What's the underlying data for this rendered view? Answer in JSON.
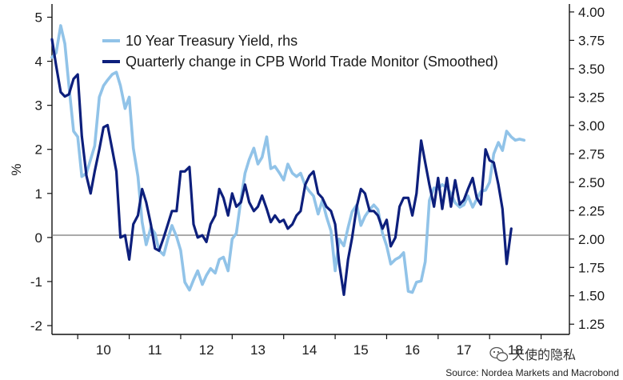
{
  "chart_data": {
    "type": "line",
    "title": "",
    "ylabel": "%",
    "y2label": "",
    "xlabel": "",
    "ylim": [
      -2.2,
      5.3
    ],
    "y2lim": [
      1.16,
      4.07
    ],
    "xlim": [
      2009.5,
      2019.55
    ],
    "yticks": [
      "-2",
      "-1",
      "0",
      "1",
      "2",
      "3",
      "4",
      "5"
    ],
    "y2ticks": [
      "1.25",
      "1.50",
      "1.75",
      "2.00",
      "2.25",
      "2.50",
      "2.75",
      "3.00",
      "3.25",
      "3.50",
      "3.75",
      "4.00"
    ],
    "xticks": [
      "10",
      "11",
      "12",
      "13",
      "14",
      "15",
      "16",
      "17",
      "18"
    ],
    "zero_line": true,
    "grid": false,
    "legend_position": "top-left",
    "source": "Source: Nordea Markets and Macrobond",
    "watermark": "天使的隐私",
    "series": [
      {
        "name": "10 Year Treasury Yield, rhs",
        "axis": "right",
        "color": "#91c3e8",
        "x": [
          2009.5,
          2009.58,
          2009.67,
          2009.75,
          2009.83,
          2009.92,
          2010.0,
          2010.08,
          2010.17,
          2010.25,
          2010.33,
          2010.42,
          2010.5,
          2010.58,
          2010.67,
          2010.75,
          2010.83,
          2010.92,
          2011.0,
          2011.08,
          2011.17,
          2011.25,
          2011.33,
          2011.42,
          2011.5,
          2011.58,
          2011.67,
          2011.75,
          2011.83,
          2011.92,
          2012.0,
          2012.08,
          2012.17,
          2012.25,
          2012.33,
          2012.42,
          2012.5,
          2012.58,
          2012.67,
          2012.75,
          2012.83,
          2012.92,
          2013.0,
          2013.08,
          2013.17,
          2013.25,
          2013.33,
          2013.42,
          2013.5,
          2013.58,
          2013.67,
          2013.75,
          2013.83,
          2013.92,
          2014.0,
          2014.08,
          2014.17,
          2014.25,
          2014.33,
          2014.42,
          2014.5,
          2014.58,
          2014.67,
          2014.75,
          2014.83,
          2014.92,
          2015.0,
          2015.08,
          2015.17,
          2015.25,
          2015.33,
          2015.42,
          2015.5,
          2015.58,
          2015.67,
          2015.75,
          2015.83,
          2015.92,
          2016.0,
          2016.08,
          2016.17,
          2016.25,
          2016.33,
          2016.42,
          2016.5,
          2016.58,
          2016.67,
          2016.75,
          2016.83,
          2016.92,
          2017.0,
          2017.08,
          2017.17,
          2017.25,
          2017.33,
          2017.42,
          2017.5,
          2017.58,
          2017.67,
          2017.75,
          2017.83,
          2017.92,
          2018.0,
          2018.08,
          2018.17,
          2018.25,
          2018.33,
          2018.42,
          2018.5,
          2018.58,
          2018.67
        ],
        "values": [
          3.6,
          3.64,
          3.88,
          3.72,
          3.35,
          2.95,
          2.9,
          2.55,
          2.58,
          2.7,
          2.82,
          3.25,
          3.35,
          3.4,
          3.45,
          3.47,
          3.35,
          3.15,
          3.25,
          2.8,
          2.55,
          2.15,
          1.95,
          2.1,
          2.05,
          1.9,
          1.86,
          2.0,
          2.12,
          2.02,
          1.9,
          1.62,
          1.55,
          1.64,
          1.72,
          1.6,
          1.68,
          1.74,
          1.7,
          1.82,
          1.84,
          1.72,
          2.0,
          2.05,
          2.35,
          2.58,
          2.7,
          2.8,
          2.66,
          2.72,
          2.9,
          2.62,
          2.64,
          2.58,
          2.52,
          2.66,
          2.58,
          2.55,
          2.58,
          2.47,
          2.42,
          2.38,
          2.22,
          2.34,
          2.2,
          2.07,
          1.72,
          2.0,
          1.94,
          2.1,
          2.24,
          2.3,
          2.12,
          2.2,
          2.26,
          2.3,
          2.26,
          2.05,
          1.94,
          1.78,
          1.82,
          1.84,
          1.88,
          1.54,
          1.53,
          1.62,
          1.63,
          1.8,
          2.34,
          2.45,
          2.44,
          2.48,
          2.45,
          2.4,
          2.32,
          2.28,
          2.3,
          2.38,
          2.28,
          2.35,
          2.42,
          2.43,
          2.5,
          2.75,
          2.85,
          2.78,
          2.95,
          2.9,
          2.87,
          2.88,
          2.87
        ]
      },
      {
        "name": "Quarterly change in CPB World Trade Monitor (Smoothed)",
        "axis": "left",
        "color": "#0d1f7c",
        "x": [
          2009.5,
          2009.58,
          2009.67,
          2009.75,
          2009.83,
          2009.92,
          2010.0,
          2010.08,
          2010.17,
          2010.25,
          2010.33,
          2010.42,
          2010.5,
          2010.58,
          2010.67,
          2010.75,
          2010.83,
          2010.92,
          2011.0,
          2011.08,
          2011.17,
          2011.25,
          2011.33,
          2011.42,
          2011.5,
          2011.58,
          2011.67,
          2011.75,
          2011.83,
          2011.92,
          2012.0,
          2012.08,
          2012.17,
          2012.25,
          2012.33,
          2012.42,
          2012.5,
          2012.58,
          2012.67,
          2012.75,
          2012.83,
          2012.92,
          2013.0,
          2013.08,
          2013.17,
          2013.25,
          2013.33,
          2013.42,
          2013.5,
          2013.58,
          2013.67,
          2013.75,
          2013.83,
          2013.92,
          2014.0,
          2014.08,
          2014.17,
          2014.25,
          2014.33,
          2014.42,
          2014.5,
          2014.58,
          2014.67,
          2014.75,
          2014.83,
          2014.92,
          2015.0,
          2015.08,
          2015.17,
          2015.25,
          2015.33,
          2015.42,
          2015.5,
          2015.58,
          2015.67,
          2015.75,
          2015.83,
          2015.92,
          2016.0,
          2016.08,
          2016.17,
          2016.25,
          2016.33,
          2016.42,
          2016.5,
          2016.58,
          2016.67,
          2016.75,
          2016.83,
          2016.92,
          2017.0,
          2017.08,
          2017.17,
          2017.25,
          2017.33,
          2017.42,
          2017.5,
          2017.58,
          2017.67,
          2017.75,
          2017.83,
          2017.92,
          2018.0,
          2018.08,
          2018.17,
          2018.25,
          2018.33,
          2018.42
        ],
        "values": [
          4.5,
          3.9,
          3.3,
          3.2,
          3.25,
          3.6,
          3.7,
          2.3,
          1.4,
          1.0,
          1.5,
          2.0,
          2.5,
          2.55,
          2.0,
          1.5,
          0.0,
          0.05,
          -0.5,
          0.3,
          0.5,
          1.1,
          0.8,
          0.3,
          -0.25,
          -0.3,
          0.0,
          0.3,
          0.6,
          0.6,
          1.5,
          1.5,
          1.6,
          0.3,
          0.0,
          0.05,
          -0.1,
          0.3,
          0.5,
          1.1,
          0.9,
          0.5,
          1.0,
          0.7,
          0.8,
          1.2,
          0.8,
          0.6,
          0.7,
          0.95,
          0.65,
          0.35,
          0.5,
          0.35,
          0.4,
          0.2,
          0.3,
          0.5,
          0.6,
          1.2,
          1.4,
          1.5,
          1.0,
          0.9,
          0.7,
          0.6,
          0.3,
          -0.6,
          -1.3,
          -0.5,
          0.0,
          0.7,
          1.1,
          1.0,
          0.6,
          0.6,
          0.5,
          0.2,
          0.4,
          -0.2,
          0.0,
          0.7,
          0.9,
          0.9,
          0.5,
          1.0,
          2.2,
          1.7,
          1.2,
          0.7,
          1.35,
          0.65,
          1.35,
          0.7,
          1.3,
          0.75,
          0.85,
          1.1,
          1.35,
          0.9,
          0.75,
          2.0,
          1.75,
          1.7,
          1.2,
          0.65,
          -0.6,
          0.2
        ]
      }
    ]
  }
}
